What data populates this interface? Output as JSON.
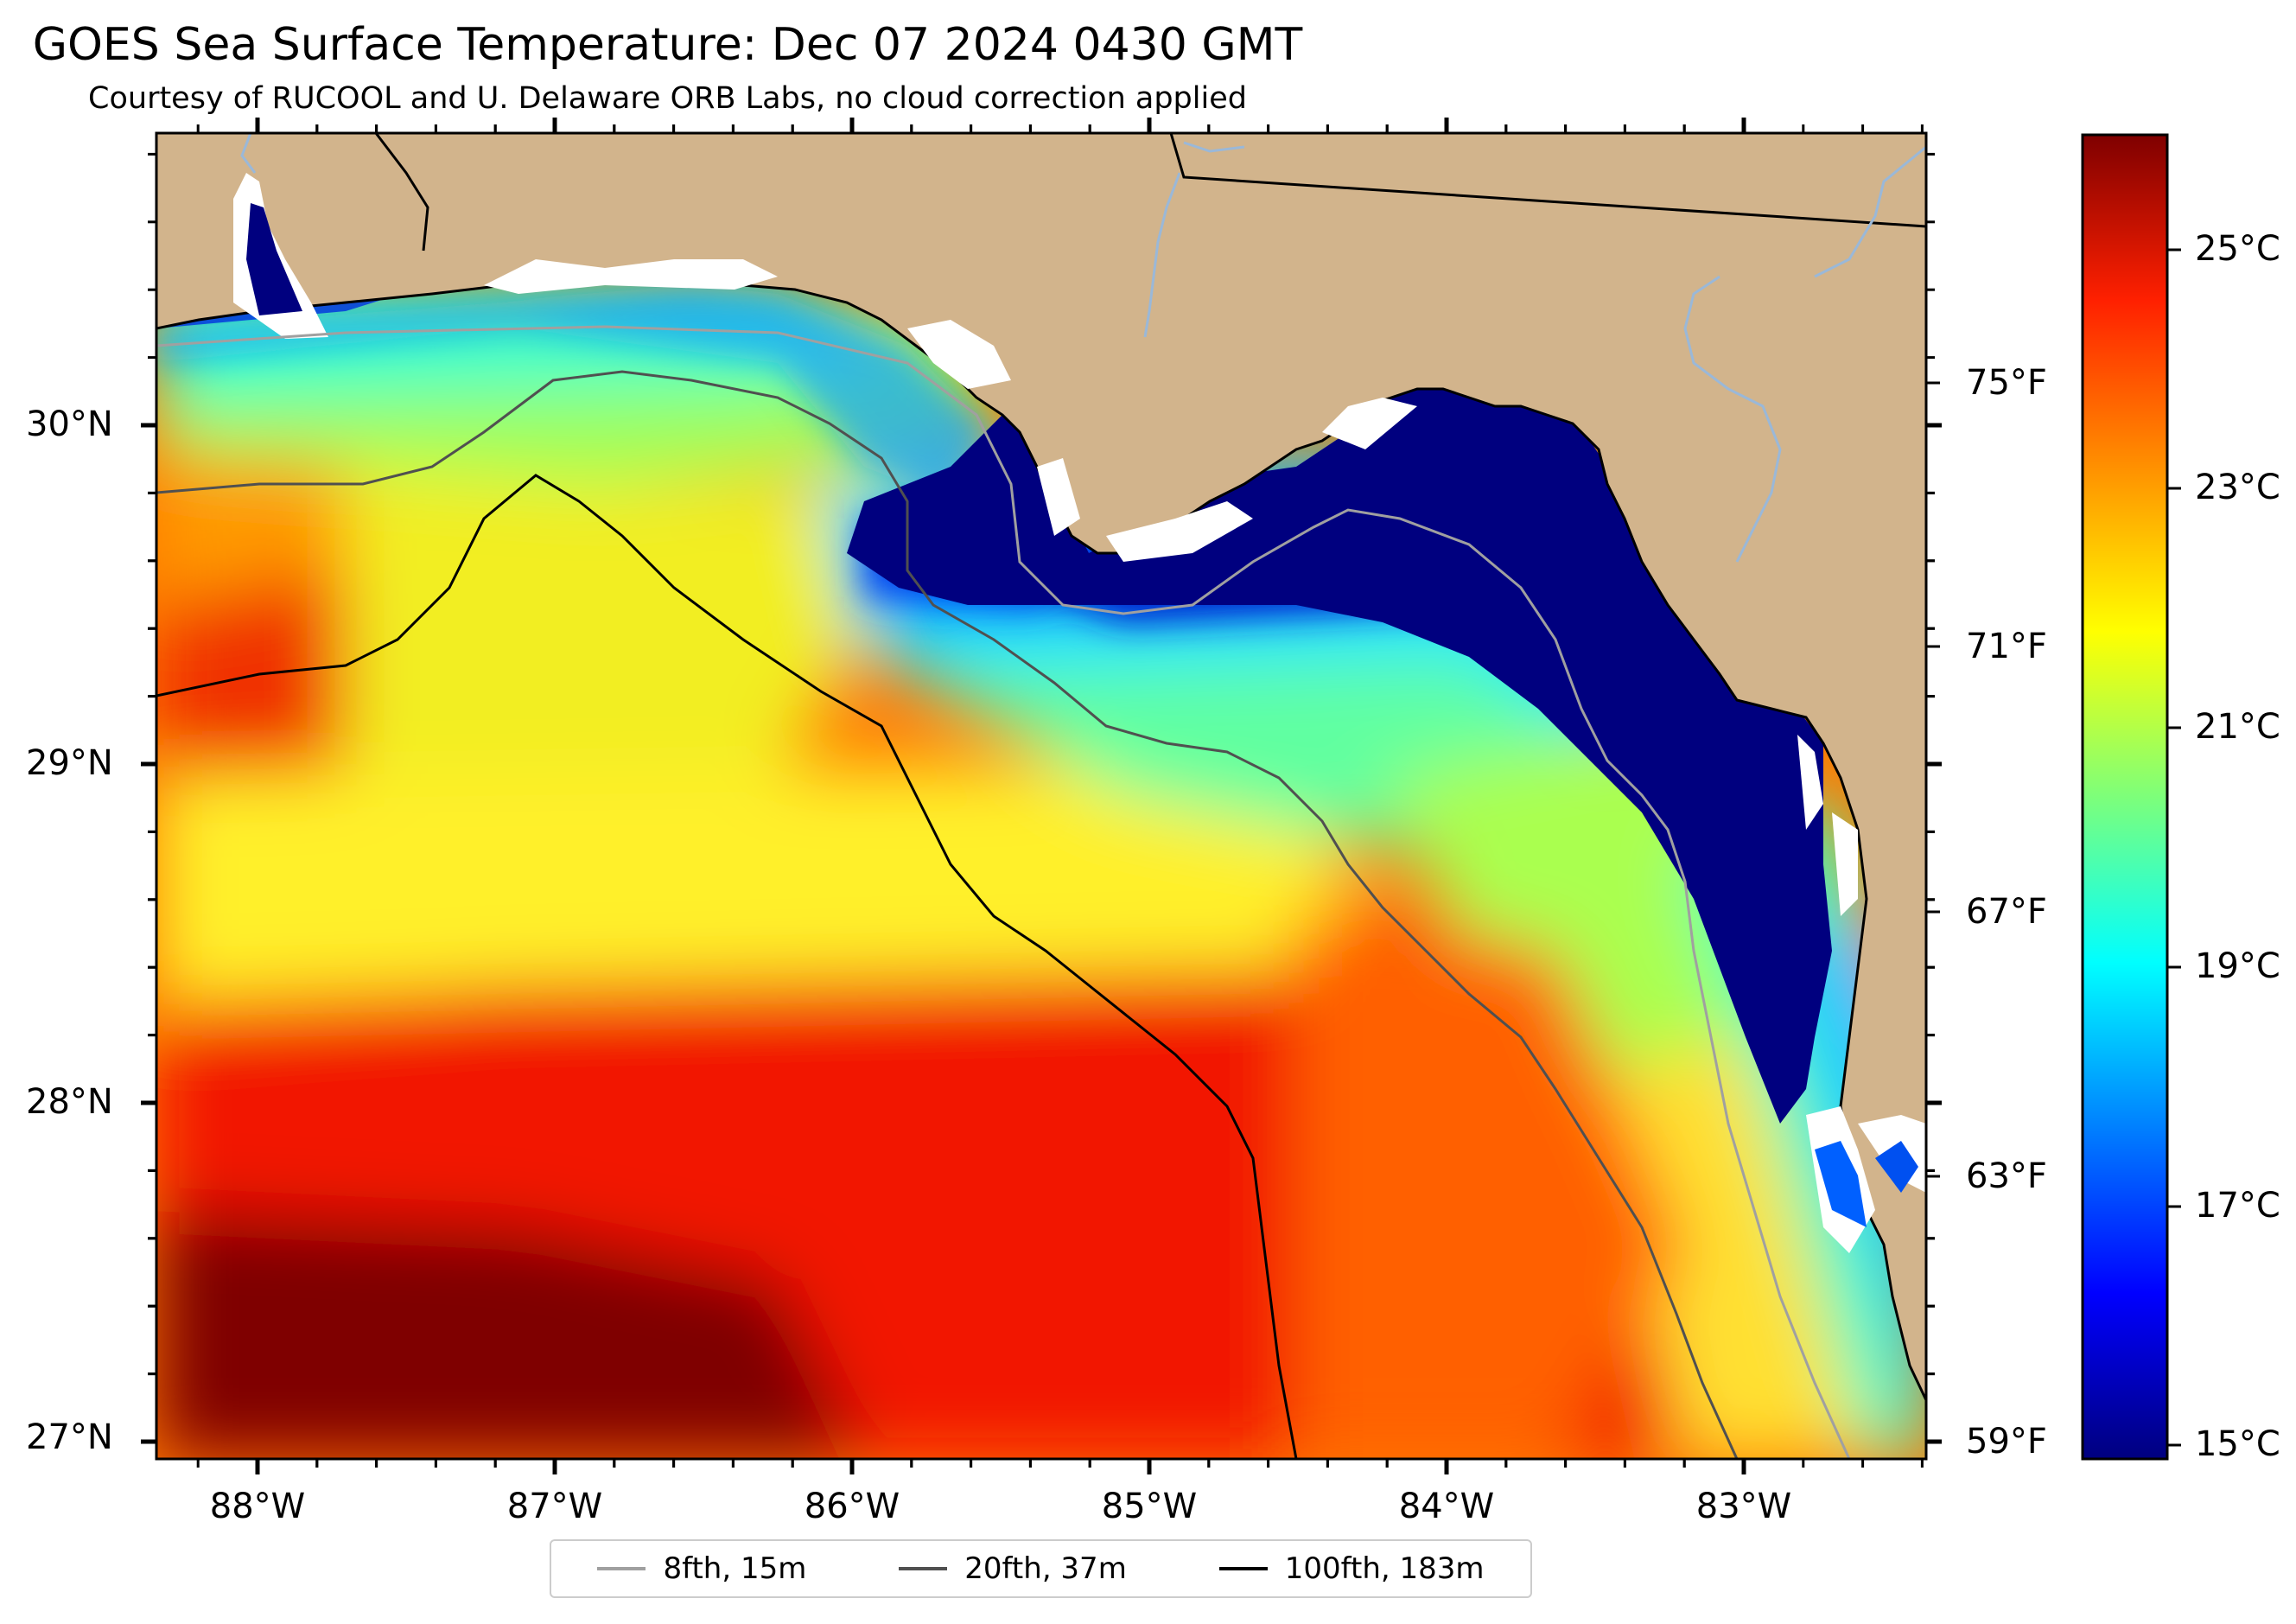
{
  "title": "GOES Sea Surface Temperature: Dec 07 2024 0430 GMT",
  "subtitle": "Courtesy of RUCOOL and U. Delaware ORB Labs, no cloud correction applied",
  "lat_ticks": [
    {
      "label": "30°N",
      "value": 30
    },
    {
      "label": "29°N",
      "value": 29
    },
    {
      "label": "28°N",
      "value": 28
    },
    {
      "label": "27°N",
      "value": 27
    }
  ],
  "lon_ticks": [
    {
      "label": "88°W",
      "value": -88
    },
    {
      "label": "87°W",
      "value": -87
    },
    {
      "label": "86°W",
      "value": -86
    },
    {
      "label": "85°W",
      "value": -85
    },
    {
      "label": "84°W",
      "value": -84
    },
    {
      "label": "83°W",
      "value": -83
    }
  ],
  "fahrenheit_ticks": [
    "75°F",
    "71°F",
    "67°F",
    "63°F",
    "59°F"
  ],
  "celsius_ticks": [
    "25°C",
    "23°C",
    "21°C",
    "19°C",
    "17°C",
    "15°C"
  ],
  "legend": [
    {
      "label": "8fth, 15m",
      "color": "#a0a0a0"
    },
    {
      "label": "20fth, 37m",
      "color": "#505050"
    },
    {
      "label": "100fth, 183m",
      "color": "#000000"
    }
  ],
  "colors": {
    "land": "#d2b48c",
    "river": "#9ab8d8",
    "coast": "#000000"
  }
}
